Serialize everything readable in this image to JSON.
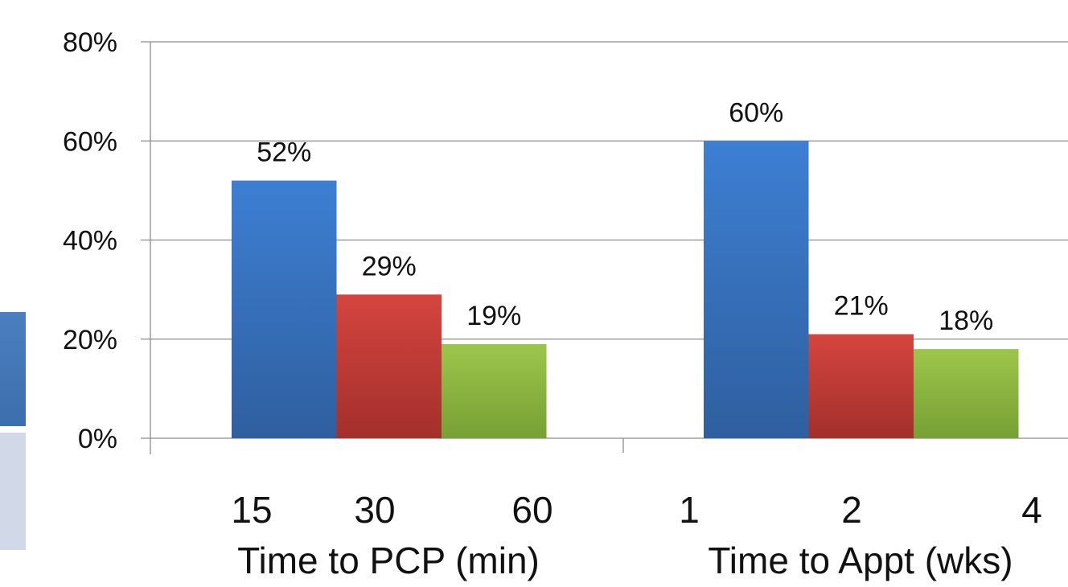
{
  "chart_data": {
    "type": "bar",
    "groups": [
      {
        "categories": [
          "15",
          "30",
          "60"
        ],
        "group_label": "Time to PCP (min)",
        "values": [
          52,
          29,
          19
        ],
        "labels": [
          "52%",
          "29%",
          "19%"
        ]
      },
      {
        "categories": [
          "1",
          "2",
          "4"
        ],
        "group_label": "Time to Appt (wks)",
        "values": [
          60,
          21,
          18
        ],
        "labels": [
          "60%",
          "21%",
          "18%"
        ]
      }
    ],
    "yticks": [
      "0%",
      "20%",
      "40%",
      "60%",
      "80%"
    ],
    "ylim": [
      0,
      80
    ],
    "grid": true,
    "bar_colors": [
      "#3a72c4",
      "#c63a34",
      "#8db840"
    ]
  }
}
